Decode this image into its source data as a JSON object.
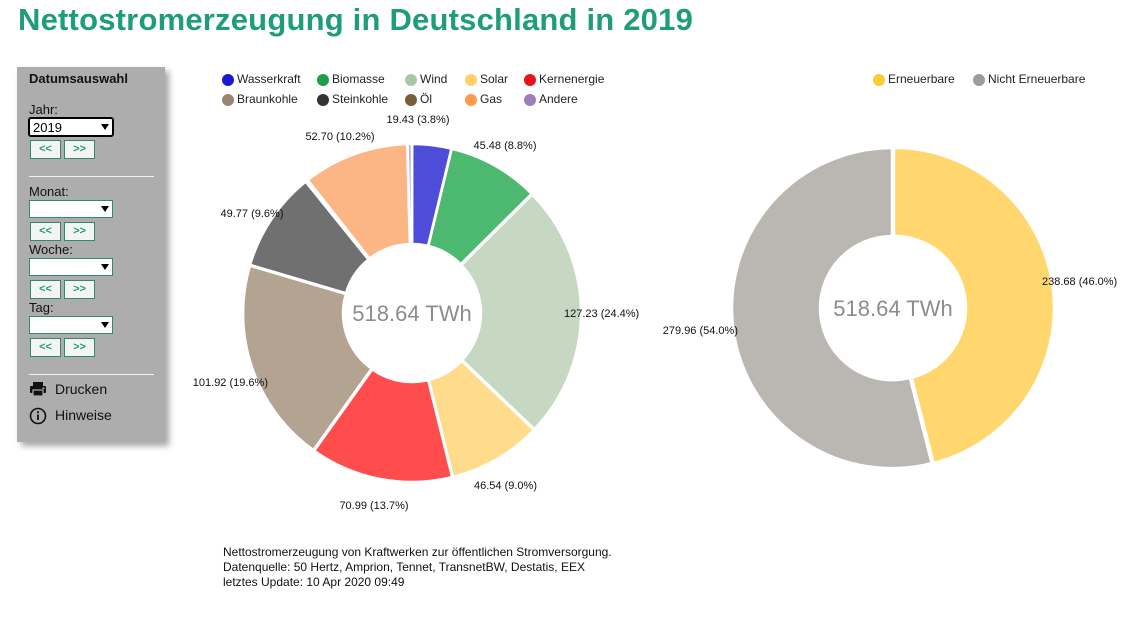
{
  "title": "Nettostromerzeugung in Deutschland in 2019",
  "panel": {
    "heading": "Datumsauswahl",
    "year_label": "Jahr:",
    "year_value": "2019",
    "month_label": "Monat:",
    "month_value": "",
    "week_label": "Woche:",
    "week_value": "",
    "day_label": "Tag:",
    "day_value": "",
    "prev_label": "<<",
    "next_label": ">>",
    "print_label": "Drucken",
    "info_label": "Hinweise",
    "print_icon": "printer-icon",
    "info_icon": "info-icon"
  },
  "chart_data": [
    {
      "type": "pie",
      "variant": "donut",
      "center_label": "518.64 TWh",
      "legend_placement": "top",
      "legend": [
        {
          "name": "Wasserkraft",
          "color": "#1a1acc"
        },
        {
          "name": "Biomasse",
          "color": "#1f9e4a"
        },
        {
          "name": "Wind",
          "color": "#a9c7a6"
        },
        {
          "name": "Solar",
          "color": "#ffd066"
        },
        {
          "name": "Kernenergie",
          "color": "#e8141c"
        },
        {
          "name": "Braunkohle",
          "color": "#9c8570"
        },
        {
          "name": "Steinkohle",
          "color": "#333333"
        },
        {
          "name": "Öl",
          "color": "#7a5c3a"
        },
        {
          "name": "Gas",
          "color": "#ff9a4d"
        },
        {
          "name": "Andere",
          "color": "#9b7fba"
        }
      ],
      "slices": [
        {
          "name": "Wasserkraft",
          "value": 19.43,
          "label": "19.43 (3.8%)",
          "color": "#4d4dd9"
        },
        {
          "name": "Biomasse",
          "value": 45.48,
          "label": "45.48 (8.8%)",
          "color": "#4db870"
        },
        {
          "name": "Wind",
          "value": 127.23,
          "label": "127.23 (24.4%)",
          "color": "#c6d7c2"
        },
        {
          "name": "Solar",
          "value": 46.54,
          "label": "46.54 (9.0%)",
          "color": "#ffdc8c"
        },
        {
          "name": "Kernenergie",
          "value": 70.99,
          "label": "70.99 (13.7%)",
          "color": "#ff4d4d"
        },
        {
          "name": "Braunkohle",
          "value": 101.92,
          "label": "101.92 (19.6%)",
          "color": "#b3a391"
        },
        {
          "name": "Steinkohle",
          "value": 49.77,
          "label": "49.77 (9.6%)",
          "color": "#707070"
        },
        {
          "name": "Öl",
          "value": 1.0,
          "label": "",
          "color": "#a0805a"
        },
        {
          "name": "Gas",
          "value": 52.7,
          "label": "52.70 (10.2%)",
          "color": "#fcb584"
        },
        {
          "name": "Andere",
          "value": 2.2,
          "label": "",
          "color": "#c1b0d3"
        }
      ]
    },
    {
      "type": "pie",
      "variant": "donut",
      "center_label": "518.64 TWh",
      "legend_placement": "top-right",
      "legend": [
        {
          "name": "Erneuerbare",
          "color": "#ffc93a"
        },
        {
          "name": "Nicht Erneuerbare",
          "color": "#9c9c9c"
        }
      ],
      "slices": [
        {
          "name": "Erneuerbare",
          "value": 238.68,
          "label": "238.68 (46.0%)",
          "color": "#ffd76e"
        },
        {
          "name": "Nicht Erneuerbare",
          "value": 279.96,
          "label": "279.96 (54.0%)",
          "color": "#bab6b2"
        }
      ]
    }
  ],
  "footer": {
    "line1": "Nettostromerzeugung von Kraftwerken zur öffentlichen Stromversorgung.",
    "line2": "Datenquelle: 50 Hertz, Amprion, Tennet, TransnetBW, Destatis, EEX",
    "line3": "letztes Update: 10 Apr 2020 09:49"
  }
}
